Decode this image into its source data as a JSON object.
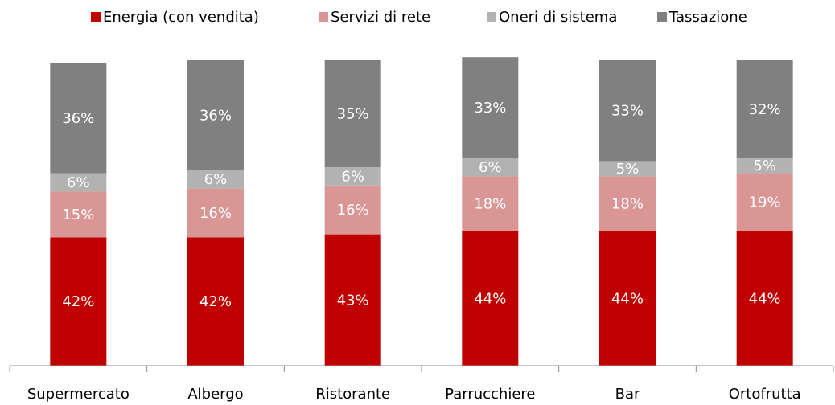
{
  "chart_data": {
    "type": "stacked_bar",
    "categories": [
      "Supermercato",
      "Albergo",
      "Ristorante",
      "Parrucchiere",
      "Bar",
      "Ortofrutta"
    ],
    "series": [
      {
        "name": "Energia (con vendita)",
        "color": "#c00000",
        "values": [
          42,
          42,
          43,
          44,
          44,
          44
        ],
        "value_labels": [
          "42%",
          "42%",
          "43%",
          "44%",
          "44%",
          "44%"
        ]
      },
      {
        "name": "Servizi di rete",
        "color": "#da9694",
        "values": [
          15,
          16,
          16,
          18,
          18,
          19
        ],
        "value_labels": [
          "15%",
          "16%",
          "16%",
          "18%",
          "18%",
          "19%"
        ]
      },
      {
        "name": "Oneri di sistema",
        "color": "#b2b2b2",
        "values": [
          6,
          6,
          6,
          6,
          5,
          5
        ],
        "value_labels": [
          "6%",
          "6%",
          "6%",
          "6%",
          "5%",
          "5%"
        ]
      },
      {
        "name": "Tassazione",
        "color": "#808080",
        "values": [
          36,
          36,
          35,
          33,
          33,
          32
        ],
        "value_labels": [
          "36%",
          "36%",
          "35%",
          "33%",
          "33%",
          "32%"
        ]
      }
    ],
    "ylim": [
      0,
      100
    ],
    "legend": "top"
  }
}
